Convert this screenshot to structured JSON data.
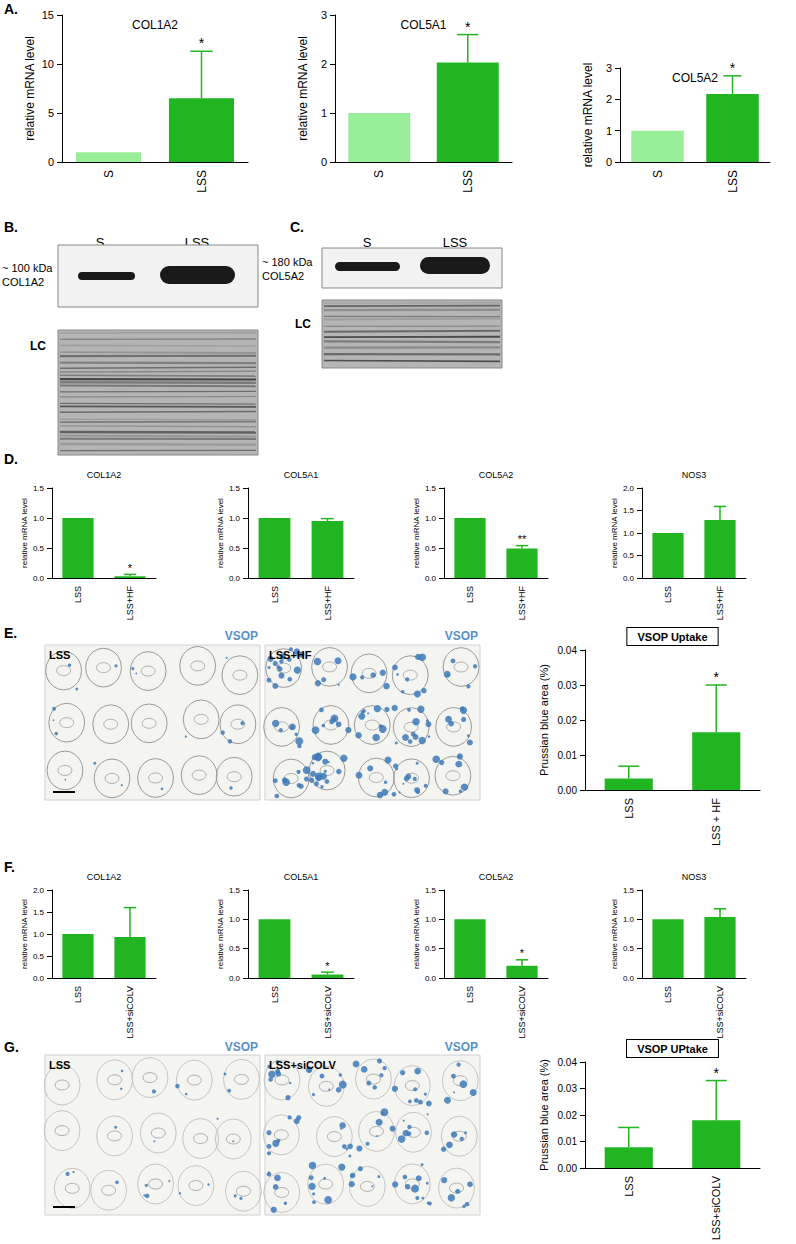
{
  "chart_data": [
    {
      "type": "bar",
      "title": "COL1A2",
      "ylabel": "relative mRNA level",
      "categories": [
        "S",
        "LSS"
      ],
      "values": [
        1,
        6.5
      ],
      "errors": [
        null,
        4.8
      ],
      "annotations": [
        null,
        "*"
      ],
      "colors": [
        "#99ee99",
        "#22b522"
      ],
      "ylim": [
        0,
        15
      ],
      "yticks": [
        0,
        5,
        10,
        15
      ],
      "grid": false
    },
    {
      "type": "bar",
      "title": "COL5A1",
      "ylabel": "relative mRNA level",
      "categories": [
        "S",
        "LSS"
      ],
      "values": [
        1,
        2.03
      ],
      "errors": [
        null,
        0.57
      ],
      "annotations": [
        null,
        "*"
      ],
      "colors": [
        "#99ee99",
        "#22b522"
      ],
      "ylim": [
        0,
        3
      ],
      "yticks": [
        0,
        1,
        2,
        3
      ],
      "grid": false
    },
    {
      "type": "bar",
      "title": "COL5A2",
      "ylabel": "relative mRNA level",
      "categories": [
        "S",
        "LSS"
      ],
      "values": [
        1,
        2.17
      ],
      "errors": [
        null,
        0.58
      ],
      "annotations": [
        null,
        "*"
      ],
      "colors": [
        "#99ee99",
        "#22b522"
      ],
      "ylim": [
        0,
        3
      ],
      "yticks": [
        0,
        1,
        2,
        3
      ],
      "grid": false
    },
    {
      "type": "bar",
      "title": "COL1A2",
      "ylabel": "relative mRNA level",
      "categories": [
        "LSS",
        "LSS+HF"
      ],
      "values": [
        1,
        0.03
      ],
      "errors": [
        null,
        0.03
      ],
      "annotations": [
        null,
        "*"
      ],
      "color": "#22b522",
      "ylim": [
        0,
        1.5
      ],
      "yticks": [
        {
          "value": 0,
          "label": "0.0"
        },
        0.5,
        {
          "value": 1,
          "label": "1.0"
        },
        1.5
      ],
      "grid": false
    },
    {
      "type": "bar",
      "title": "COL5A1",
      "ylabel": "relative mRNA level",
      "categories": [
        "LSS",
        "LSS+HF"
      ],
      "values": [
        1,
        0.95
      ],
      "errors": [
        null,
        0.04
      ],
      "annotations": [
        null,
        null
      ],
      "color": "#22b522",
      "ylim": [
        0,
        1.5
      ],
      "yticks": [
        {
          "value": 0,
          "label": "0.0"
        },
        0.5,
        {
          "value": 1,
          "label": "1.0"
        },
        1.5
      ],
      "grid": false
    },
    {
      "type": "bar",
      "title": "COL5A2",
      "ylabel": "relative mRNA level",
      "categories": [
        "LSS",
        "LSS+HF"
      ],
      "values": [
        1,
        0.49
      ],
      "errors": [
        null,
        0.05
      ],
      "annotations": [
        null,
        "**"
      ],
      "color": "#22b522",
      "ylim": [
        0,
        1.5
      ],
      "yticks": [
        {
          "value": 0,
          "label": "0.0"
        },
        0.5,
        {
          "value": 1,
          "label": "1.0"
        },
        1.5
      ],
      "grid": false
    },
    {
      "type": "bar",
      "title": "NOS3",
      "ylabel": "relative mRNA level",
      "categories": [
        "LSS",
        "LSS+HF"
      ],
      "values": [
        1,
        1.29
      ],
      "errors": [
        null,
        0.3
      ],
      "annotations": [
        null,
        null
      ],
      "color": "#22b522",
      "ylim": [
        0,
        2
      ],
      "yticks": [
        {
          "value": 0,
          "label": "0.0"
        },
        0.5,
        {
          "value": 1,
          "label": "1.0"
        },
        1.5,
        {
          "value": 2,
          "label": "2.0"
        }
      ],
      "grid": false
    },
    {
      "type": "bar",
      "title": "VSOP Uptake",
      "ylabel": "Prussian blue area (%)",
      "categories": [
        "LSS",
        "LSS + HF"
      ],
      "values": [
        0.0033,
        0.0165
      ],
      "errors": [
        0.0035,
        0.0135
      ],
      "annotations": [
        null,
        "*"
      ],
      "color": "#22b522",
      "ylim": [
        0,
        0.04
      ],
      "yticks": [
        {
          "value": 0,
          "label": "0.00"
        },
        0.01,
        0.02,
        0.03,
        0.04
      ],
      "grid": false
    },
    {
      "type": "bar",
      "title": "COL1A2",
      "ylabel": "relative mRNA level",
      "categories": [
        "LSS",
        "LSS+siCOLV"
      ],
      "values": [
        1,
        0.93
      ],
      "errors": [
        null,
        0.67
      ],
      "annotations": [
        null,
        null
      ],
      "color": "#22b522",
      "ylim": [
        0,
        2
      ],
      "yticks": [
        {
          "value": 0,
          "label": "0.0"
        },
        0.5,
        {
          "value": 1,
          "label": "1.0"
        },
        1.5,
        {
          "value": 2,
          "label": "2.0"
        }
      ],
      "grid": false
    },
    {
      "type": "bar",
      "title": "COL5A1",
      "ylabel": "relative mRNA level",
      "categories": [
        "LSS",
        "LSS+siCOLV"
      ],
      "values": [
        1,
        0.06
      ],
      "errors": [
        null,
        0.04
      ],
      "annotations": [
        null,
        "*"
      ],
      "color": "#22b522",
      "ylim": [
        0,
        1.5
      ],
      "yticks": [
        {
          "value": 0,
          "label": "0.0"
        },
        0.5,
        {
          "value": 1,
          "label": "1.0"
        },
        1.5
      ],
      "grid": false
    },
    {
      "type": "bar",
      "title": "COL5A2",
      "ylabel": "relative mRNA level",
      "categories": [
        "LSS",
        "LSS+siCOLV"
      ],
      "values": [
        1,
        0.21
      ],
      "errors": [
        null,
        0.1
      ],
      "annotations": [
        null,
        "*"
      ],
      "color": "#22b522",
      "ylim": [
        0,
        1.5
      ],
      "yticks": [
        {
          "value": 0,
          "label": "0.0"
        },
        0.5,
        {
          "value": 1,
          "label": "1.0"
        },
        1.5
      ],
      "grid": false
    },
    {
      "type": "bar",
      "title": "NOS3",
      "ylabel": "relative mRNA level",
      "categories": [
        "LSS",
        "LSS+siCOLV"
      ],
      "values": [
        1,
        1.04
      ],
      "errors": [
        null,
        0.14
      ],
      "annotations": [
        null,
        null
      ],
      "color": "#22b522",
      "ylim": [
        0,
        1.5
      ],
      "yticks": [
        {
          "value": 0,
          "label": "0.0"
        },
        0.5,
        {
          "value": 1,
          "label": "1.0"
        },
        1.5
      ],
      "grid": false
    },
    {
      "type": "bar",
      "title": "VSOP UPtake",
      "ylabel": "Prussian blue area (%)",
      "categories": [
        "LSS",
        "LSS+siCOLV"
      ],
      "values": [
        0.0078,
        0.018
      ],
      "errors": [
        0.0075,
        0.015
      ],
      "annotations": [
        null,
        "*"
      ],
      "color": "#22b522",
      "ylim": [
        0,
        0.04
      ],
      "yticks": [
        {
          "value": 0,
          "label": "0.00"
        },
        0.01,
        0.02,
        0.03,
        0.04
      ],
      "grid": false
    }
  ],
  "panel_labels": [
    "A.",
    "B.",
    "C.",
    "D.",
    "E.",
    "F.",
    "G."
  ],
  "blots": [
    {
      "lanes": [
        "S",
        "LSS"
      ],
      "band_label": [
        "~ 100 kDa",
        "COL1A2"
      ],
      "loading_control": "LC"
    },
    {
      "lanes": [
        "S",
        "LSS"
      ],
      "band_label": [
        "~ 180 kDa",
        "COL5A2"
      ],
      "loading_control": "LC"
    }
  ],
  "micrographs": [
    {
      "images": [
        {
          "label": "LSS",
          "stain": "VSOP"
        },
        {
          "label": "LSS+HF",
          "stain": "VSOP"
        }
      ]
    },
    {
      "images": [
        {
          "label": "LSS",
          "stain": "VSOP"
        },
        {
          "label": "LSS+siCOLV",
          "stain": "VSOP"
        }
      ]
    }
  ]
}
